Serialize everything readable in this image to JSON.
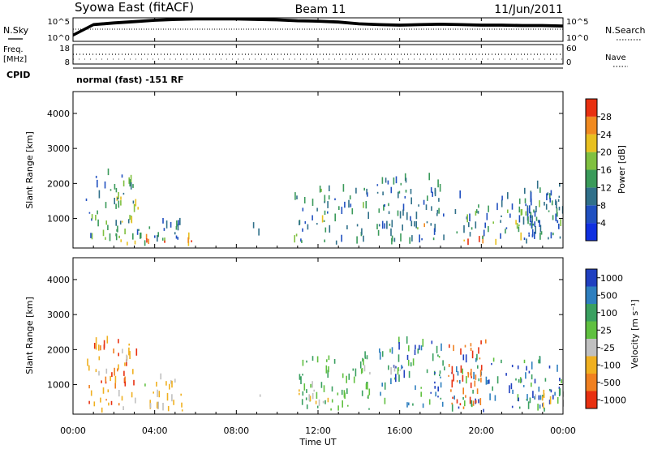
{
  "header": {
    "station": "Syowa East (fitACF)",
    "beam": "Beam 11",
    "date": "11/Jun/2011"
  },
  "top_panels": {
    "nsky_label": "N.Sky",
    "nsky_ticks": [
      "10^5",
      "10^0"
    ],
    "nsearch_label": "N.Search",
    "nsearch_ticks": [
      "10^5",
      "10^0"
    ],
    "freq_label_1": "Freq.",
    "freq_label_2": "[MHz]",
    "freq_ticks": [
      "18",
      "8"
    ],
    "nave_label": "Nave",
    "nave_ticks": [
      "60",
      "0"
    ],
    "cpid_label": "CPID",
    "cpid_text": "normal (fast) -151 RF"
  },
  "axes": {
    "xlabel": "Time UT",
    "xticks": [
      "00:00",
      "04:00",
      "08:00",
      "12:00",
      "16:00",
      "20:00",
      "00:00"
    ],
    "ylabel": "Slant Range [km]",
    "yticks": [
      "1000",
      "2000",
      "3000",
      "4000"
    ]
  },
  "colorbars": {
    "power": {
      "label": "Power [dB]",
      "ticks": [
        "4",
        "8",
        "12",
        "16",
        "20",
        "24",
        "28"
      ],
      "colors": [
        "#1030e0",
        "#2050c0",
        "#30708a",
        "#3a9a5a",
        "#80c040",
        "#e8c020",
        "#f08a20",
        "#e83010"
      ]
    },
    "velocity": {
      "label": "Velocity [m s⁻¹]",
      "ticks": [
        "1000",
        "500",
        "100",
        "25",
        "-25",
        "-100",
        "-500",
        "-1000"
      ],
      "colors": [
        "#2040c0",
        "#2e7fbf",
        "#3aa060",
        "#60c040",
        "#c0c0c0",
        "#f0b020",
        "#f08020",
        "#e83010"
      ]
    }
  },
  "chart_data": [
    {
      "type": "line",
      "title": "N.Sky / N.Search",
      "x_unit": "hours UT",
      "xlim": [
        0,
        24
      ],
      "series": [
        {
          "name": "N.Sky",
          "x": [
            0,
            1,
            2,
            3,
            4,
            5,
            6,
            7,
            8,
            9,
            10,
            11,
            12,
            13,
            14,
            15,
            16,
            17,
            18,
            19,
            20,
            21,
            22,
            23,
            24
          ],
          "y": [
            1.5,
            3.9,
            4.3,
            4.6,
            4.9,
            5.1,
            5.2,
            5.2,
            5.2,
            5.1,
            5.0,
            4.8,
            4.7,
            4.5,
            4.1,
            3.9,
            3.8,
            3.9,
            4.0,
            3.9,
            3.8,
            3.8,
            3.7,
            3.7,
            3.6
          ]
        }
      ],
      "ylim": [
        0,
        5
      ]
    },
    {
      "type": "scatter",
      "title": "Freq.",
      "xlim": [
        0,
        24
      ],
      "ylim": [
        8,
        18
      ],
      "series": [
        {
          "name": "Freq.",
          "x": [
            0,
            24
          ],
          "y": [
            13.2,
            13.2
          ]
        }
      ]
    },
    {
      "type": "heatmap",
      "title": "Power",
      "xlabel": "Time UT",
      "ylabel": "Slant Range [km]",
      "xlim": [
        0,
        24
      ],
      "ylim": [
        180,
        4600
      ],
      "clim": [
        0,
        30
      ],
      "regions": [
        {
          "t0": 0.9,
          "t1": 6.1,
          "r0": 200,
          "r1": 420,
          "v0": 14,
          "v1": 30
        },
        {
          "t0": 0.6,
          "t1": 3.0,
          "r0": 350,
          "r1": 2250,
          "v0": 4,
          "v1": 18
        },
        {
          "t0": 2.0,
          "t1": 3.2,
          "r0": 400,
          "r1": 1600,
          "v0": 8,
          "v1": 22
        },
        {
          "t0": 3.0,
          "t1": 5.5,
          "r0": 200,
          "r1": 900,
          "v0": 4,
          "v1": 14
        },
        {
          "t0": 8.8,
          "t1": 9.2,
          "r0": 500,
          "r1": 800,
          "v0": 4,
          "v1": 10
        },
        {
          "t0": 10.8,
          "t1": 14.5,
          "r0": 250,
          "r1": 1800,
          "v0": 4,
          "v1": 16
        },
        {
          "t0": 11.9,
          "t1": 12.6,
          "r0": 500,
          "r1": 900,
          "v0": 10,
          "v1": 22
        },
        {
          "t0": 14.8,
          "t1": 18.2,
          "r0": 250,
          "r1": 2200,
          "v0": 4,
          "v1": 14
        },
        {
          "t0": 16.2,
          "t1": 17.2,
          "r0": 520,
          "r1": 800,
          "v0": 14,
          "v1": 26
        },
        {
          "t0": 18.5,
          "t1": 22.0,
          "r0": 200,
          "r1": 380,
          "v0": 20,
          "v1": 30
        },
        {
          "t0": 18.5,
          "t1": 24.0,
          "r0": 400,
          "r1": 1600,
          "v0": 4,
          "v1": 16
        },
        {
          "t0": 20.5,
          "t1": 22.5,
          "r0": 700,
          "r1": 1200,
          "v0": 8,
          "v1": 20
        },
        {
          "t0": 22.0,
          "t1": 24.0,
          "r0": 250,
          "r1": 2000,
          "v0": 4,
          "v1": 12
        }
      ]
    },
    {
      "type": "heatmap",
      "title": "Velocity",
      "xlabel": "Time UT",
      "ylabel": "Slant Range [km]",
      "xlim": [
        0,
        24
      ],
      "ylim": [
        180,
        4600
      ],
      "clim": [
        -1000,
        1000
      ],
      "regions": [
        {
          "t0": 0.9,
          "t1": 6.0,
          "r0": 200,
          "r1": 450,
          "v0": -500,
          "v1": -100
        },
        {
          "t0": 0.6,
          "t1": 3.1,
          "r0": 400,
          "r1": 2250,
          "v0": -1000,
          "v1": -100
        },
        {
          "t0": 3.5,
          "t1": 5.6,
          "r0": 250,
          "r1": 1200,
          "v0": -500,
          "v1": 25
        },
        {
          "t0": 8.8,
          "t1": 9.2,
          "r0": 500,
          "r1": 800,
          "v0": -100,
          "v1": 25
        },
        {
          "t0": 11.0,
          "t1": 14.5,
          "r0": 250,
          "r1": 1800,
          "v0": 25,
          "v1": 500
        },
        {
          "t0": 11.0,
          "t1": 12.5,
          "r0": 300,
          "r1": 1000,
          "v0": -500,
          "v1": -25
        },
        {
          "t0": 14.8,
          "t1": 18.2,
          "r0": 300,
          "r1": 2200,
          "v0": 100,
          "v1": 1000
        },
        {
          "t0": 14.0,
          "t1": 16.0,
          "r0": 1200,
          "r1": 1500,
          "v0": -25,
          "v1": 25
        },
        {
          "t0": 18.5,
          "t1": 24.0,
          "r0": 200,
          "r1": 1700,
          "v0": 100,
          "v1": 1000
        },
        {
          "t0": 18.3,
          "t1": 20.2,
          "r0": 300,
          "r1": 2200,
          "v0": -1000,
          "v1": -500
        },
        {
          "t0": 22.5,
          "t1": 24.0,
          "r0": 250,
          "r1": 800,
          "v0": -500,
          "v1": -100
        }
      ]
    }
  ]
}
